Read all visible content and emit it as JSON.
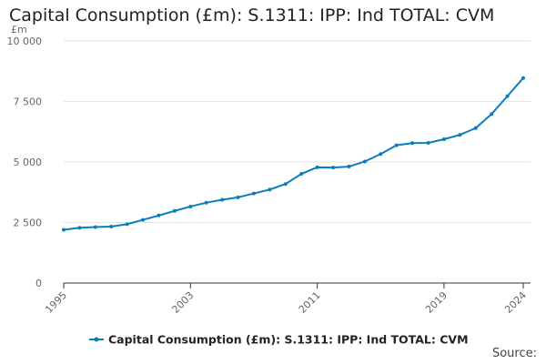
{
  "colors": {
    "series": "#0b7dbd",
    "grid": "#e6e6e6",
    "axis": "#333333",
    "tick": "#666666",
    "text": "#222222"
  },
  "chart_data": {
    "type": "line",
    "title": "Capital Consumption (£m): S.1311: IPP: Ind TOTAL: CVM",
    "ylabel": "£m",
    "xlabel": "",
    "ylim": [
      0,
      10000
    ],
    "xlim": [
      1995,
      2024
    ],
    "yticks": [
      0,
      2500,
      5000,
      7500,
      10000
    ],
    "ytick_labels": [
      "0",
      "2 500",
      "5 000",
      "7 500",
      "10 000"
    ],
    "xticks": [
      1995,
      2003,
      2011,
      2019,
      2024
    ],
    "xtick_labels": [
      "1995",
      "2003",
      "2011",
      "2019",
      "2024"
    ],
    "grid": "horizontal",
    "legend_position": "bottom-center",
    "series": [
      {
        "name": "Capital Consumption (£m): S.1311: IPP: Ind TOTAL: CVM",
        "x": [
          1995,
          1996,
          1997,
          1998,
          1999,
          2000,
          2001,
          2002,
          2003,
          2004,
          2005,
          2006,
          2007,
          2008,
          2009,
          2010,
          2011,
          2012,
          2013,
          2014,
          2015,
          2016,
          2017,
          2018,
          2019,
          2020,
          2021,
          2022,
          2023,
          2024
        ],
        "values": [
          2200,
          2280,
          2310,
          2330,
          2430,
          2610,
          2790,
          2980,
          3160,
          3320,
          3440,
          3540,
          3700,
          3860,
          4090,
          4510,
          4780,
          4770,
          4810,
          5020,
          5330,
          5690,
          5780,
          5790,
          5940,
          6120,
          6400,
          6980,
          7720,
          8470
        ]
      }
    ]
  },
  "footer": {
    "source_label": "Source:"
  }
}
